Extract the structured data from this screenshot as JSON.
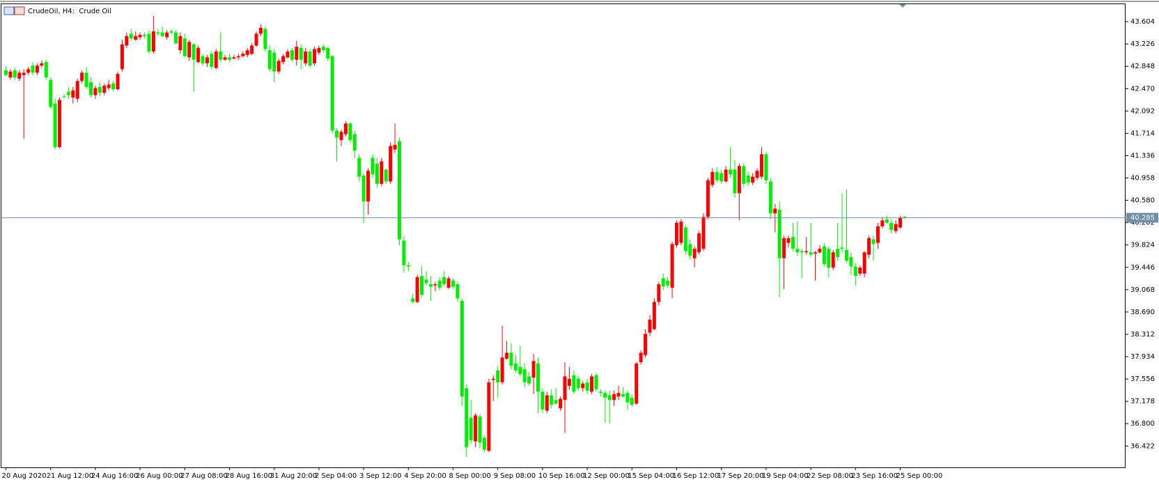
{
  "chart_data": {
    "type": "candlestick",
    "title": "CrudeOil, H4:  Crude Oil",
    "up_color": "#ff0000",
    "down_color": "#00ee00",
    "last_price": 40.285,
    "last_price_color": "#6f8fa8",
    "ylim": [
      36.06,
      43.9
    ],
    "yticks": [
      43.604,
      43.226,
      42.848,
      {
        "value": 42.47,
        "label": "42.470"
      },
      42.092,
      41.714,
      41.336,
      40.958,
      {
        "value": 40.58,
        "label": "40.580"
      },
      40.202,
      39.824,
      39.446,
      39.068,
      {
        "value": 38.69,
        "label": "38.690"
      },
      38.312,
      37.934,
      37.556,
      37.178,
      {
        "value": 36.8,
        "label": "36.800"
      },
      36.422
    ],
    "categories": [
      "20 Aug 2020",
      null,
      null,
      null,
      null,
      null,
      null,
      null,
      null,
      null,
      "21 Aug 12:00",
      null,
      null,
      null,
      null,
      null,
      null,
      null,
      null,
      null,
      "24 Aug 16:00",
      null,
      null,
      null,
      null,
      null,
      null,
      null,
      null,
      null,
      "26 Aug 00:00",
      null,
      null,
      null,
      null,
      null,
      null,
      null,
      null,
      null,
      "27 Aug 08:00",
      null,
      null,
      null,
      null,
      null,
      null,
      null,
      null,
      null,
      "28 Aug 16:00",
      null,
      null,
      null,
      null,
      null,
      null,
      null,
      null,
      null,
      "31 Aug 20:00",
      null,
      null,
      null,
      null,
      null,
      null,
      null,
      null,
      null,
      "2 Sep 04:00",
      null,
      null,
      null,
      null,
      null,
      null,
      null,
      null,
      null,
      "3 Sep 12:00",
      null,
      null,
      null,
      null,
      null,
      null,
      null,
      null,
      null,
      "4 Sep 20:00",
      null,
      null,
      null,
      null,
      null,
      null,
      null,
      null,
      null,
      "8 Sep 00:00",
      null,
      null,
      null,
      null,
      null,
      null,
      null,
      null,
      null,
      "9 Sep 08:00",
      null,
      null,
      null,
      null,
      null,
      null,
      null,
      null,
      null,
      "10 Sep 16:00",
      null,
      null,
      null,
      null,
      null,
      null,
      null,
      null,
      null,
      "12 Sep 00:00",
      null,
      null,
      null,
      null,
      null,
      null,
      null,
      null,
      null,
      "15 Sep 04:00",
      null,
      null,
      null,
      null,
      null,
      null,
      null,
      null,
      null,
      "16 Sep 12:00",
      null,
      null,
      null,
      null,
      null,
      null,
      null,
      null,
      null,
      "17 Sep 20:00",
      null,
      null,
      null,
      null,
      null,
      null,
      null,
      null,
      null,
      "19 Sep 04:00",
      null,
      null,
      null,
      null,
      null,
      null,
      null,
      null,
      null,
      "22 Sep 08:00",
      null,
      null,
      null,
      null,
      null,
      null,
      null,
      null,
      null,
      "23 Sep 16:00",
      null,
      null,
      null,
      null,
      null,
      null,
      null,
      null,
      null,
      "25 Sep 00:00",
      null
    ],
    "ohlc": [
      [
        42.78,
        42.85,
        42.68,
        42.7
      ],
      [
        42.66,
        42.8,
        42.62,
        42.76
      ],
      [
        42.78,
        42.82,
        42.62,
        42.66
      ],
      [
        42.64,
        42.78,
        42.6,
        42.74
      ],
      [
        42.7,
        42.8,
        41.62,
        42.74
      ],
      [
        42.74,
        42.84,
        42.7,
        42.8
      ],
      [
        42.86,
        42.92,
        42.7,
        42.74
      ],
      [
        42.74,
        42.9,
        42.7,
        42.86
      ],
      [
        42.86,
        42.95,
        42.82,
        42.9
      ],
      [
        42.92,
        42.96,
        42.62,
        42.66
      ],
      [
        42.62,
        42.66,
        42.14,
        42.16
      ],
      [
        42.22,
        42.3,
        41.44,
        41.48
      ],
      [
        41.48,
        42.32,
        41.46,
        42.28
      ],
      [
        42.34,
        42.38,
        42.3,
        42.34
      ],
      [
        42.42,
        42.5,
        42.3,
        42.36
      ],
      [
        42.32,
        42.5,
        42.22,
        42.44
      ],
      [
        42.3,
        42.64,
        42.24,
        42.6
      ],
      [
        42.6,
        42.78,
        42.56,
        42.74
      ],
      [
        42.74,
        42.84,
        42.46,
        42.5
      ],
      [
        42.58,
        42.66,
        42.32,
        42.36
      ],
      [
        42.36,
        42.52,
        42.3,
        42.48
      ],
      [
        42.5,
        42.58,
        42.34,
        42.4
      ],
      [
        42.4,
        42.56,
        42.36,
        42.52
      ],
      [
        42.48,
        42.62,
        42.44,
        42.54
      ],
      [
        42.56,
        42.6,
        42.42,
        42.46
      ],
      [
        42.46,
        42.76,
        42.44,
        42.72
      ],
      [
        42.8,
        43.3,
        42.76,
        43.22
      ],
      [
        43.2,
        43.42,
        43.16,
        43.36
      ],
      [
        43.4,
        43.48,
        43.28,
        43.32
      ],
      [
        43.3,
        43.44,
        43.28,
        43.36
      ],
      [
        43.34,
        43.42,
        43.3,
        43.38
      ],
      [
        43.38,
        43.42,
        43.32,
        43.36
      ],
      [
        43.4,
        43.46,
        43.06,
        43.1
      ],
      [
        43.1,
        43.7,
        43.06,
        43.44
      ],
      [
        43.42,
        43.48,
        43.36,
        43.4
      ],
      [
        43.42,
        43.52,
        43.34,
        43.36
      ],
      [
        43.34,
        43.46,
        43.3,
        43.42
      ],
      [
        43.44,
        43.48,
        43.38,
        43.42
      ],
      [
        43.42,
        43.46,
        43.22,
        43.24
      ],
      [
        43.12,
        43.42,
        43.06,
        43.36
      ],
      [
        43.32,
        43.4,
        43.0,
        43.02
      ],
      [
        43.0,
        43.3,
        42.94,
        43.26
      ],
      [
        43.22,
        43.24,
        42.42,
        42.96
      ],
      [
        42.92,
        43.2,
        42.9,
        43.16
      ],
      [
        43.02,
        43.06,
        42.86,
        42.9
      ],
      [
        42.9,
        43.04,
        42.84,
        43.0
      ],
      [
        43.06,
        43.1,
        42.8,
        42.84
      ],
      [
        42.82,
        43.14,
        42.8,
        43.1
      ],
      [
        43.1,
        43.42,
        42.92,
        42.96
      ],
      [
        42.96,
        43.04,
        42.94,
        43.0
      ],
      [
        43.0,
        43.06,
        42.92,
        42.96
      ],
      [
        42.98,
        43.04,
        42.96,
        43.0
      ],
      [
        43.0,
        43.06,
        42.96,
        43.02
      ],
      [
        43.02,
        43.1,
        43.0,
        43.06
      ],
      [
        43.04,
        43.16,
        43.0,
        43.12
      ],
      [
        43.06,
        43.24,
        43.04,
        43.2
      ],
      [
        43.2,
        43.44,
        43.18,
        43.4
      ],
      [
        43.4,
        43.56,
        43.36,
        43.5
      ],
      [
        43.48,
        43.52,
        43.1,
        43.14
      ],
      [
        43.12,
        43.2,
        42.76,
        42.8
      ],
      [
        43.08,
        43.14,
        42.58,
        42.76
      ],
      [
        42.76,
        42.98,
        42.72,
        42.94
      ],
      [
        42.92,
        43.06,
        42.88,
        43.02
      ],
      [
        43.0,
        43.14,
        42.98,
        43.1
      ],
      [
        43.12,
        43.16,
        42.92,
        42.96
      ],
      [
        42.96,
        43.28,
        42.86,
        43.18
      ],
      [
        43.16,
        43.22,
        42.8,
        42.96
      ],
      [
        42.9,
        43.16,
        42.86,
        43.1
      ],
      [
        43.1,
        43.14,
        42.82,
        42.86
      ],
      [
        42.9,
        43.18,
        42.86,
        43.14
      ],
      [
        43.08,
        43.2,
        43.04,
        43.16
      ],
      [
        43.18,
        43.22,
        43.08,
        43.12
      ],
      [
        43.16,
        43.18,
        42.94,
        42.98
      ],
      [
        43.02,
        43.04,
        41.72,
        41.76
      ],
      [
        41.76,
        41.8,
        41.24,
        41.64
      ],
      [
        41.6,
        41.78,
        41.5,
        41.74
      ],
      [
        41.7,
        41.92,
        41.66,
        41.88
      ],
      [
        41.88,
        41.9,
        41.56,
        41.6
      ],
      [
        41.7,
        41.76,
        41.3,
        41.42
      ],
      [
        41.3,
        41.36,
        40.9,
        40.98
      ],
      [
        41.0,
        41.04,
        40.2,
        40.56
      ],
      [
        40.56,
        41.12,
        40.34,
        41.08
      ],
      [
        41.3,
        41.36,
        40.96,
        41.02
      ],
      [
        41.2,
        41.3,
        40.8,
        40.86
      ],
      [
        40.86,
        41.3,
        40.82,
        41.24
      ],
      [
        41.1,
        41.12,
        40.86,
        40.9
      ],
      [
        40.9,
        41.56,
        40.86,
        41.5
      ],
      [
        41.44,
        41.88,
        41.38,
        41.52
      ],
      [
        41.58,
        41.64,
        39.82,
        39.92
      ],
      [
        39.9,
        39.98,
        39.36,
        39.48
      ],
      [
        39.48,
        39.54,
        39.38,
        39.46
      ],
      [
        38.92,
        39.0,
        38.84,
        38.86
      ],
      [
        38.86,
        39.32,
        38.84,
        39.28
      ],
      [
        39.3,
        39.46,
        38.94,
        38.98
      ],
      [
        39.24,
        39.38,
        39.14,
        39.18
      ],
      [
        39.16,
        39.3,
        38.88,
        39.12
      ],
      [
        39.14,
        39.2,
        39.04,
        39.16
      ],
      [
        39.22,
        39.28,
        39.06,
        39.1
      ],
      [
        39.28,
        39.38,
        39.12,
        39.16
      ],
      [
        39.1,
        39.3,
        39.08,
        39.26
      ],
      [
        39.22,
        39.26,
        39.08,
        39.12
      ],
      [
        39.16,
        39.2,
        38.86,
        38.92
      ],
      [
        38.88,
        38.92,
        37.1,
        37.26
      ],
      [
        37.4,
        37.46,
        36.24,
        36.4
      ],
      [
        36.9,
        37.2,
        36.46,
        36.52
      ],
      [
        36.5,
        36.98,
        36.4,
        36.94
      ],
      [
        36.92,
        36.96,
        36.38,
        36.48
      ],
      [
        36.56,
        36.6,
        36.32,
        36.36
      ],
      [
        36.34,
        37.56,
        36.32,
        37.5
      ],
      [
        37.54,
        37.62,
        37.18,
        37.56
      ],
      [
        37.7,
        37.78,
        37.24,
        37.5
      ],
      [
        37.5,
        38.46,
        37.46,
        37.92
      ],
      [
        37.9,
        38.2,
        37.88,
        38.0
      ],
      [
        38.0,
        38.16,
        37.72,
        37.78
      ],
      [
        37.82,
        37.96,
        37.66,
        37.7
      ],
      [
        37.76,
        38.12,
        37.6,
        37.64
      ],
      [
        37.72,
        37.82,
        37.42,
        37.5
      ],
      [
        37.6,
        37.68,
        37.44,
        37.48
      ],
      [
        37.58,
        37.98,
        37.3,
        37.86
      ],
      [
        37.82,
        37.92,
        36.98,
        37.34
      ],
      [
        37.34,
        37.4,
        36.98,
        37.04
      ],
      [
        37.02,
        37.34,
        36.98,
        37.28
      ],
      [
        37.28,
        37.38,
        37.06,
        37.12
      ],
      [
        37.2,
        37.4,
        37.12,
        37.14
      ],
      [
        37.06,
        37.26,
        37.02,
        37.22
      ],
      [
        37.2,
        37.84,
        36.64,
        37.6
      ],
      [
        37.44,
        37.76,
        37.38,
        37.56
      ],
      [
        37.62,
        37.7,
        37.3,
        37.34
      ],
      [
        37.56,
        37.62,
        37.36,
        37.4
      ],
      [
        37.4,
        37.52,
        37.34,
        37.48
      ],
      [
        37.5,
        37.56,
        37.3,
        37.36
      ],
      [
        37.34,
        37.64,
        37.3,
        37.6
      ],
      [
        37.62,
        37.66,
        37.34,
        37.38
      ],
      [
        37.34,
        37.38,
        37.26,
        37.32
      ],
      [
        37.32,
        37.36,
        36.82,
        37.24
      ],
      [
        37.28,
        37.36,
        36.8,
        37.2
      ],
      [
        37.2,
        37.36,
        37.1,
        37.3
      ],
      [
        37.26,
        37.44,
        37.2,
        37.32
      ],
      [
        37.3,
        37.42,
        37.24,
        37.26
      ],
      [
        37.32,
        37.36,
        37.04,
        37.16
      ],
      [
        37.24,
        37.3,
        37.08,
        37.12
      ],
      [
        37.14,
        37.84,
        37.12,
        37.82
      ],
      [
        37.84,
        38.04,
        37.8,
        38.0
      ],
      [
        37.96,
        38.4,
        37.92,
        38.32
      ],
      [
        38.34,
        38.64,
        38.28,
        38.56
      ],
      [
        38.4,
        38.92,
        38.38,
        38.86
      ],
      [
        38.86,
        39.2,
        38.8,
        39.16
      ],
      [
        39.26,
        39.34,
        39.06,
        39.12
      ],
      [
        39.22,
        39.28,
        39.1,
        39.14
      ],
      [
        39.1,
        39.88,
        38.92,
        39.84
      ],
      [
        39.82,
        40.24,
        39.78,
        40.2
      ],
      [
        39.86,
        40.26,
        39.82,
        40.22
      ],
      [
        40.12,
        40.16,
        39.66,
        39.72
      ],
      [
        39.84,
        39.92,
        39.58,
        39.64
      ],
      [
        39.6,
        39.8,
        39.44,
        39.76
      ],
      [
        39.7,
        40.06,
        39.66,
        40.02
      ],
      [
        39.76,
        40.36,
        39.72,
        40.3
      ],
      [
        40.3,
        40.96,
        40.26,
        40.92
      ],
      [
        40.84,
        41.12,
        40.8,
        41.06
      ],
      [
        41.06,
        41.14,
        40.88,
        40.92
      ],
      [
        41.04,
        41.1,
        40.86,
        40.9
      ],
      [
        40.9,
        41.16,
        40.88,
        41.1
      ],
      [
        41.1,
        41.48,
        40.96,
        41.02
      ],
      [
        41.1,
        41.26,
        40.62,
        40.7
      ],
      [
        40.7,
        41.2,
        40.24,
        41.16
      ],
      [
        41.16,
        41.2,
        40.8,
        40.86
      ],
      [
        41.0,
        41.06,
        40.82,
        40.88
      ],
      [
        40.88,
        41.04,
        40.84,
        40.98
      ],
      [
        40.96,
        41.12,
        40.92,
        41.08
      ],
      [
        40.98,
        41.48,
        40.94,
        41.36
      ],
      [
        41.36,
        41.4,
        40.86,
        40.92
      ],
      [
        40.9,
        40.96,
        40.26,
        40.36
      ],
      [
        40.36,
        40.52,
        40.04,
        40.44
      ],
      [
        40.42,
        40.56,
        38.94,
        39.6
      ],
      [
        39.6,
        39.98,
        39.08,
        39.94
      ],
      [
        39.86,
        39.98,
        39.78,
        39.94
      ],
      [
        39.96,
        40.2,
        39.72,
        39.76
      ],
      [
        39.76,
        40.22,
        39.64,
        39.7
      ],
      [
        39.72,
        39.76,
        39.26,
        39.7
      ],
      [
        39.7,
        39.96,
        39.66,
        39.72
      ],
      [
        39.7,
        40.2,
        39.62,
        39.66
      ],
      [
        39.68,
        39.72,
        39.22,
        39.7
      ],
      [
        39.7,
        39.82,
        39.68,
        39.76
      ],
      [
        39.8,
        39.86,
        39.46,
        39.5
      ],
      [
        39.76,
        39.8,
        39.28,
        39.44
      ],
      [
        39.44,
        39.74,
        39.4,
        39.7
      ],
      [
        39.76,
        40.2,
        39.56,
        39.62
      ],
      [
        39.78,
        40.7,
        39.7,
        39.76
      ],
      [
        39.74,
        40.76,
        39.52,
        39.56
      ],
      [
        39.62,
        39.7,
        39.32,
        39.46
      ],
      [
        39.46,
        39.52,
        39.14,
        39.3
      ],
      [
        39.34,
        39.48,
        39.3,
        39.44
      ],
      [
        39.34,
        39.72,
        39.28,
        39.7
      ],
      [
        39.66,
        39.98,
        39.6,
        39.94
      ],
      [
        39.92,
        39.98,
        39.56,
        39.84
      ],
      [
        39.86,
        40.2,
        39.76,
        40.14
      ],
      [
        40.14,
        40.3,
        40.1,
        40.24
      ],
      [
        40.26,
        40.32,
        40.18,
        40.2
      ],
      [
        40.2,
        40.26,
        40.02,
        40.08
      ],
      [
        40.06,
        40.24,
        40.02,
        40.18
      ],
      [
        40.12,
        40.32,
        40.1,
        40.28
      ],
      [
        40.3,
        40.32,
        40.26,
        40.285
      ]
    ]
  }
}
